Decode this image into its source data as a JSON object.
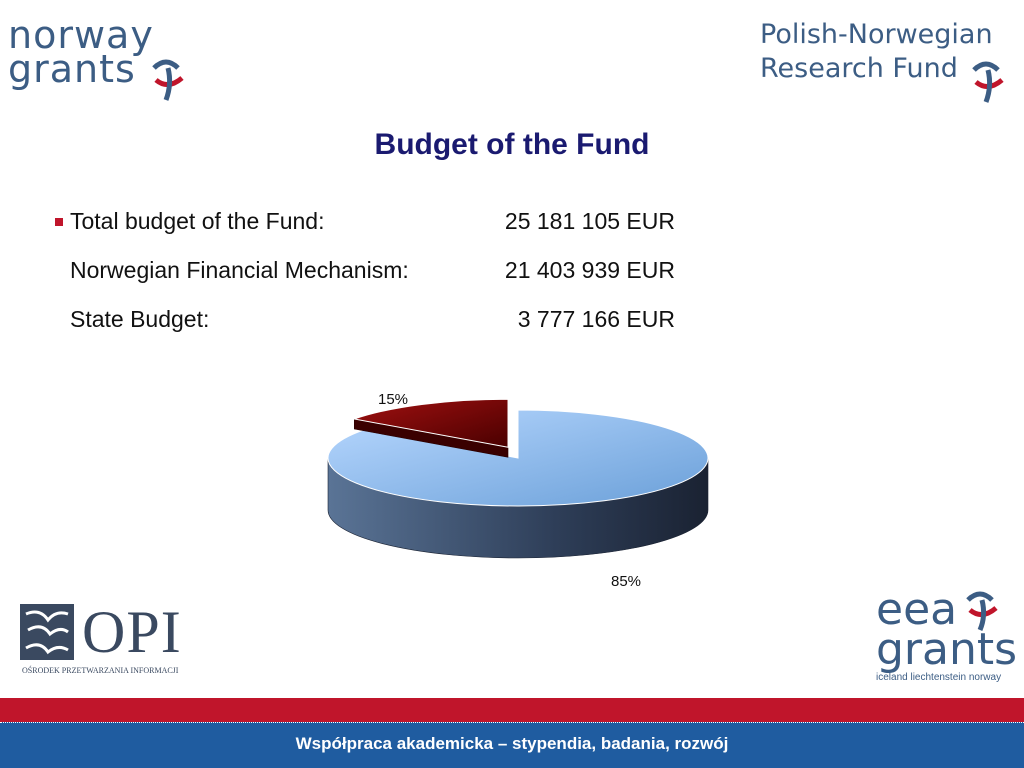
{
  "logos": {
    "norway_grants": [
      "norway",
      "grants"
    ],
    "polish_norwegian": [
      "Polish-Norwegian",
      "Research Fund"
    ],
    "opi": {
      "word": "OPI",
      "sub": "OŚRODEK PRZETWARZANIA INFORMACJI"
    },
    "eea_grants": {
      "line1": "eea",
      "line2": "grants",
      "sub": "iceland liechtenstein norway"
    }
  },
  "title": "Budget of the Fund",
  "budget": [
    {
      "label": "Total budget of the Fund:",
      "value": "25 181 105 EUR"
    },
    {
      "label": "Norwegian Financial Mechanism:",
      "value": "21 403 939 EUR"
    },
    {
      "label": "State Budget:",
      "value": "3 777 166 EUR"
    }
  ],
  "chart_data": {
    "type": "pie",
    "values": [
      85,
      15
    ],
    "data_labels": [
      "85%",
      "15%"
    ],
    "colors": [
      "#7fb2e8",
      "#7a0000"
    ],
    "style": "3d-exploded"
  },
  "colors": {
    "footer_red": "#c0152b",
    "footer_blue": "#1f5ca0",
    "title": "#1a1a70"
  },
  "footer": {
    "text": "Współpraca akademicka – stypendia, badania, rozwój"
  }
}
